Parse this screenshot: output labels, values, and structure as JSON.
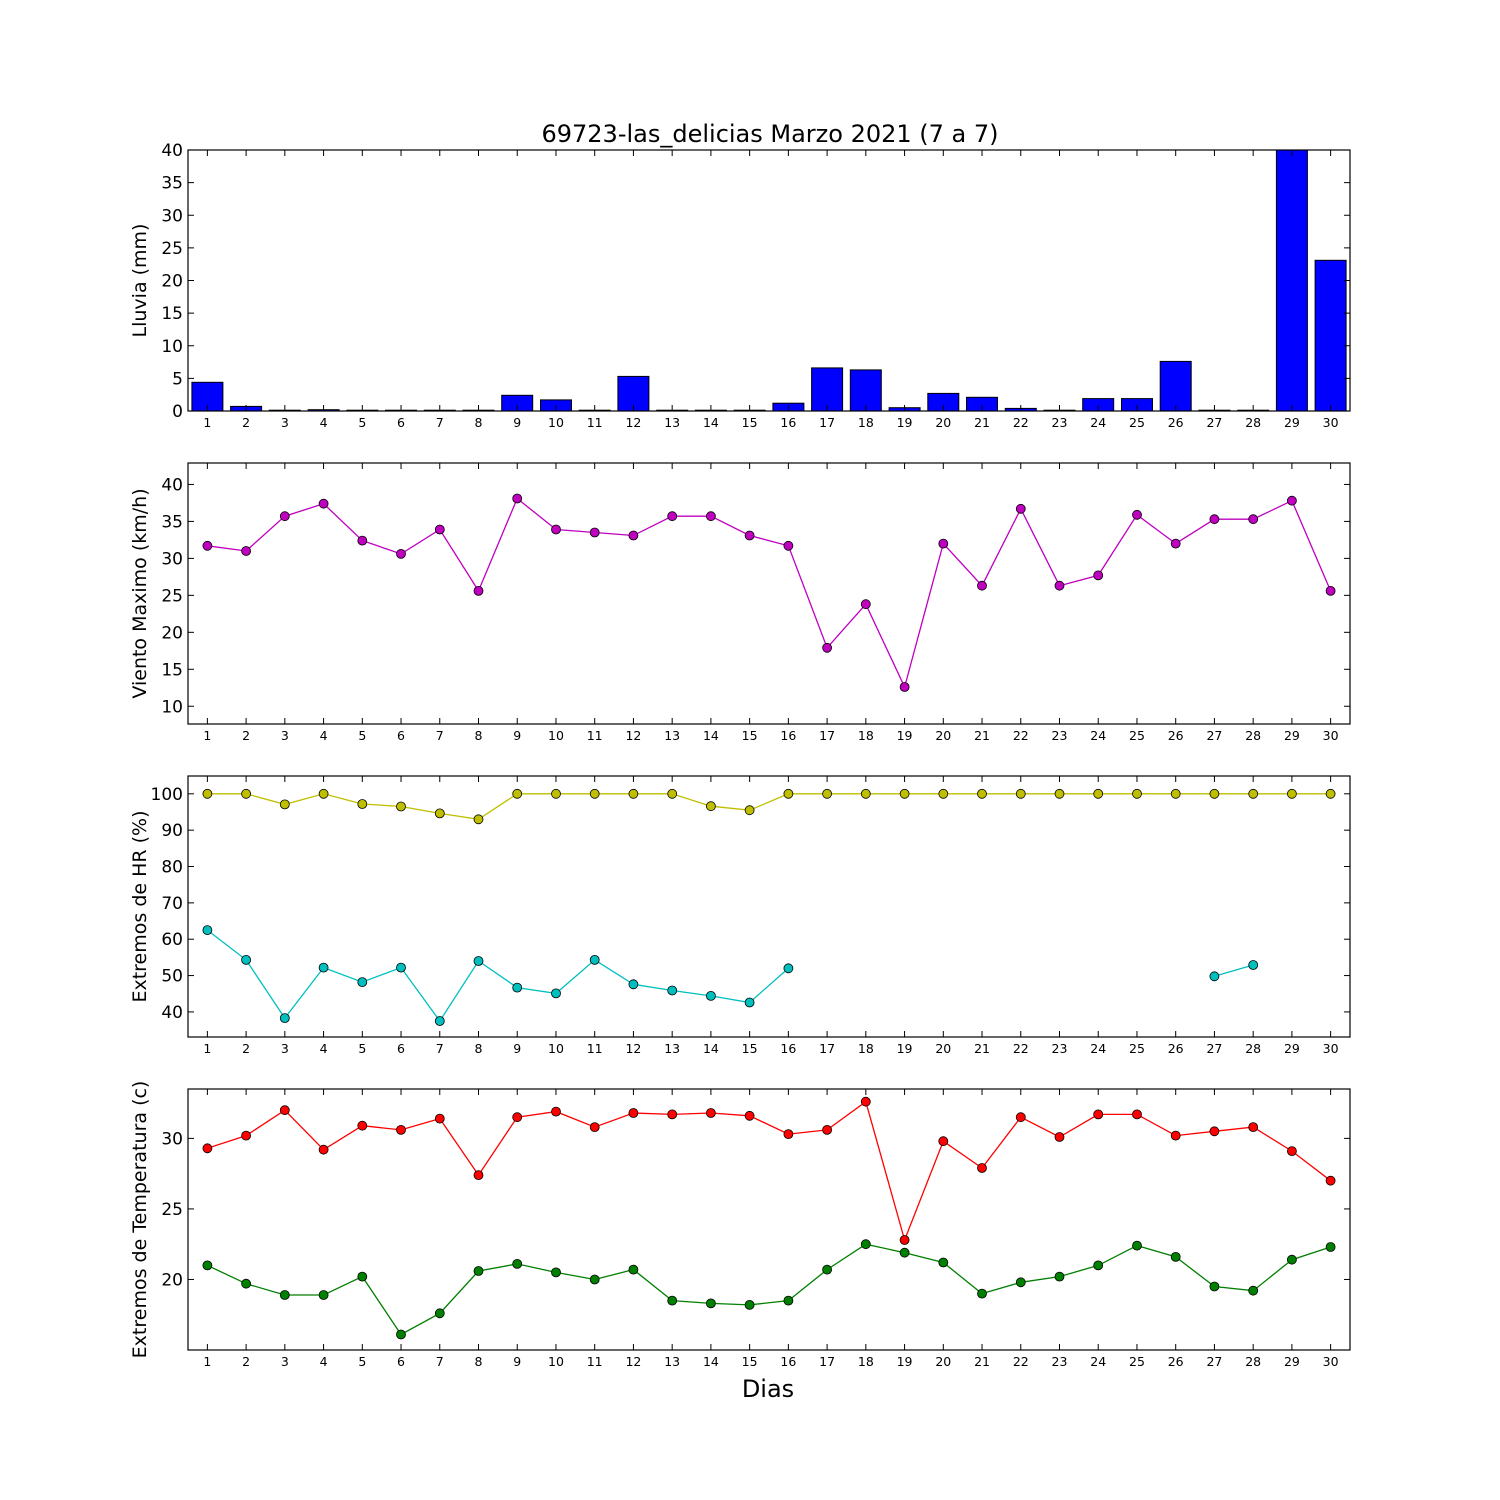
{
  "chart_data": {
    "title": "69723-las_delicias Marzo 2021  (7 a 7)",
    "xlabel": "Dias",
    "days": [
      1,
      2,
      3,
      4,
      5,
      6,
      7,
      8,
      9,
      10,
      11,
      12,
      13,
      14,
      15,
      16,
      17,
      18,
      19,
      20,
      21,
      22,
      23,
      24,
      25,
      26,
      27,
      28,
      29,
      30
    ],
    "panels": [
      {
        "type": "bar",
        "ylabel": "Lluvia (mm)",
        "ylim": [
          0,
          40
        ],
        "yticks": [
          0,
          5,
          10,
          15,
          20,
          25,
          30,
          35,
          40
        ],
        "series": [
          {
            "color": "#0000ff",
            "values": [
              4.4,
              0.7,
              0.0,
              0.2,
              0.0,
              0.0,
              0.0,
              0.0,
              2.4,
              1.7,
              0.0,
              5.3,
              0.0,
              0.0,
              0.0,
              1.2,
              6.6,
              6.3,
              0.5,
              2.7,
              2.1,
              0.4,
              0.1,
              1.9,
              1.9,
              7.6,
              0.1,
              0.1,
              40.0,
              23.1
            ]
          }
        ]
      },
      {
        "type": "line",
        "ylabel": "Viento Maximo (km/h)",
        "ylim": [
          7.6,
          42.9
        ],
        "yticks": [
          10,
          15,
          20,
          25,
          30,
          35,
          40
        ],
        "series": [
          {
            "color": "#bf00bf",
            "values": [
              31.7,
              31.0,
              35.7,
              37.4,
              32.4,
              30.6,
              33.9,
              25.6,
              38.1,
              33.9,
              33.5,
              33.1,
              35.7,
              35.7,
              33.1,
              31.7,
              17.9,
              23.8,
              12.6,
              32.0,
              26.3,
              36.7,
              26.3,
              27.7,
              35.9,
              32.0,
              35.3,
              35.3,
              37.8,
              25.6
            ]
          }
        ]
      },
      {
        "type": "line",
        "ylabel": "Extremos de HR (%)",
        "ylim": [
          33.1,
          104.9
        ],
        "yticks": [
          40,
          50,
          60,
          70,
          80,
          90,
          100
        ],
        "series": [
          {
            "color": "#bfbf00",
            "values": [
              100,
              100,
              97.1,
              100,
              97.2,
              96.5,
              94.6,
              93.0,
              100,
              100,
              100,
              100,
              100,
              96.6,
              95.5,
              100,
              100,
              100,
              100,
              100,
              100,
              100,
              100,
              100,
              100,
              100,
              100,
              100,
              100,
              100
            ]
          },
          {
            "color": "#00bfbf",
            "values": [
              62.5,
              54.3,
              38.3,
              52.2,
              48.2,
              52.2,
              37.5,
              54.0,
              46.7,
              45.1,
              54.3,
              47.6,
              45.9,
              44.4,
              42.6,
              52.0,
              null,
              null,
              null,
              null,
              null,
              null,
              null,
              null,
              null,
              null,
              49.8,
              52.9,
              null,
              null
            ]
          }
        ]
      },
      {
        "type": "line",
        "ylabel": "Extremos de Temperatura (c)",
        "ylim": [
          15.0,
          33.5
        ],
        "yticks": [
          20,
          25,
          30
        ],
        "series": [
          {
            "color": "#ff0000",
            "values": [
              29.3,
              30.2,
              32.0,
              29.2,
              30.9,
              30.6,
              31.4,
              27.4,
              31.5,
              31.9,
              30.8,
              31.8,
              31.7,
              31.8,
              31.6,
              30.3,
              30.6,
              32.6,
              22.8,
              29.8,
              27.9,
              31.5,
              30.1,
              31.7,
              31.7,
              30.2,
              30.5,
              30.8,
              29.1,
              27.0
            ]
          },
          {
            "color": "#008000",
            "values": [
              21.0,
              19.7,
              18.9,
              18.9,
              20.2,
              16.1,
              17.6,
              20.6,
              21.1,
              20.5,
              20.0,
              20.7,
              18.5,
              18.3,
              18.2,
              18.5,
              20.7,
              22.5,
              21.9,
              21.2,
              19.0,
              19.8,
              20.2,
              21.0,
              22.4,
              21.6,
              19.5,
              19.2,
              21.4,
              22.3
            ]
          }
        ]
      }
    ]
  }
}
